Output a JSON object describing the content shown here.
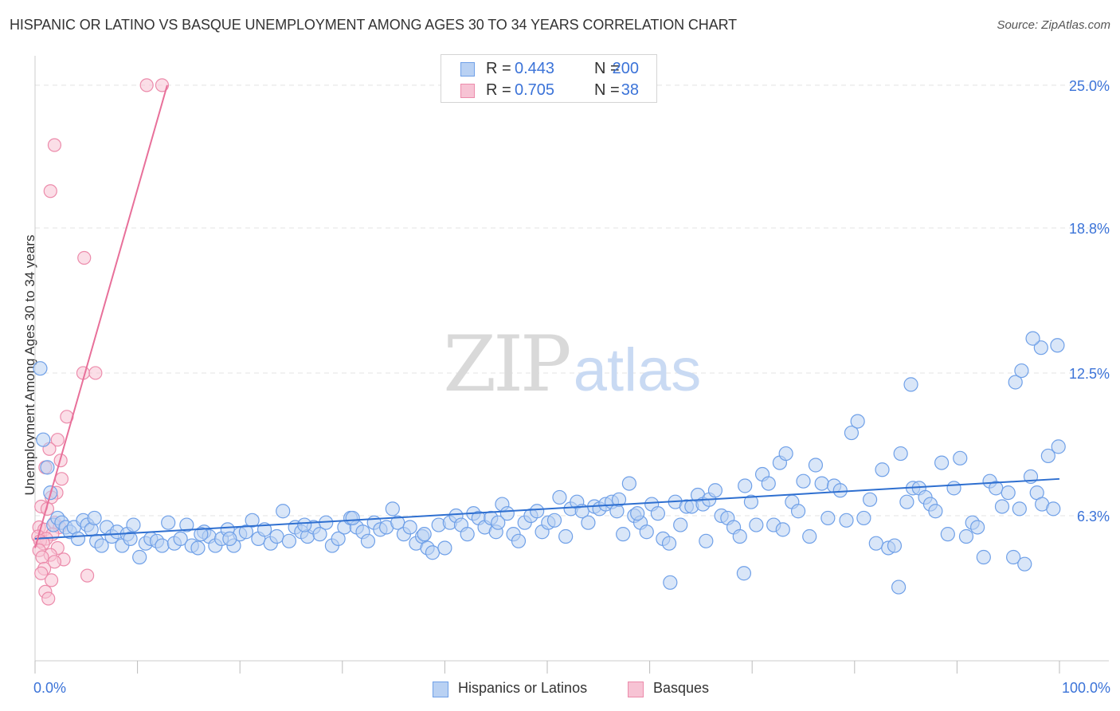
{
  "title": "HISPANIC OR LATINO VS BASQUE UNEMPLOYMENT AMONG AGES 30 TO 34 YEARS CORRELATION CHART",
  "source": "Source: ZipAtlas.com",
  "watermark": {
    "zip": "ZIP",
    "atlas": "atlas"
  },
  "legend": {
    "rows": [
      {
        "r_label": "R =",
        "r_value": "0.443",
        "n_label": "N =",
        "n_value": "200",
        "color": "#6fa0e8"
      },
      {
        "r_label": "R =",
        "r_value": "0.705",
        "n_label": "N =",
        "n_value": "38",
        "color": "#ec8bab"
      }
    ]
  },
  "bottom_legend": [
    {
      "label": "Hispanics or Latinos",
      "color": "#6fa0e8"
    },
    {
      "label": "Basques",
      "color": "#ec8bab"
    }
  ],
  "colors": {
    "blue_fill": "#b9d1f3",
    "blue_stroke": "#6fa0e8",
    "blue_line": "#2e6fd0",
    "pink_fill": "#f7c3d4",
    "pink_stroke": "#ec8bab",
    "pink_line": "#e8709a",
    "axis_text": "#3b73d8",
    "grid": "#e3e3e3"
  },
  "chart_data": {
    "type": "scatter",
    "title": "HISPANIC OR LATINO VS BASQUE UNEMPLOYMENT AMONG AGES 30 TO 34 YEARS CORRELATION CHART",
    "xlabel": "",
    "ylabel": "Unemployment Among Ages 30 to 34 years",
    "xlim": [
      0,
      100
    ],
    "ylim": [
      0,
      26.0
    ],
    "x_tick_labels": [
      "0.0%",
      "100.0%"
    ],
    "y_ticks": [
      6.3,
      12.5,
      18.8,
      25.0
    ],
    "y_tick_labels": [
      "6.3%",
      "12.5%",
      "18.8%",
      "25.0%"
    ],
    "series": [
      {
        "name": "Hispanics or Latinos",
        "r": 0.443,
        "n": 200,
        "trend": {
          "x": [
            0,
            100
          ],
          "y": [
            5.3,
            7.9
          ]
        },
        "points": [
          [
            0.5,
            12.7
          ],
          [
            0.8,
            9.6
          ],
          [
            1.2,
            8.4
          ],
          [
            1.5,
            7.3
          ],
          [
            1.8,
            5.9
          ],
          [
            2.2,
            6.2
          ],
          [
            2.6,
            6.0
          ],
          [
            3.0,
            5.8
          ],
          [
            3.4,
            5.6
          ],
          [
            3.8,
            5.8
          ],
          [
            4.2,
            5.3
          ],
          [
            4.7,
            6.1
          ],
          [
            5.1,
            5.9
          ],
          [
            5.5,
            5.7
          ],
          [
            6.0,
            5.2
          ],
          [
            6.5,
            5.0
          ],
          [
            7.0,
            5.8
          ],
          [
            7.5,
            5.4
          ],
          [
            8.0,
            5.6
          ],
          [
            8.5,
            5.0
          ],
          [
            9.0,
            5.5
          ],
          [
            9.6,
            5.9
          ],
          [
            10.2,
            4.5
          ],
          [
            10.8,
            5.1
          ],
          [
            11.3,
            5.3
          ],
          [
            11.9,
            5.2
          ],
          [
            12.4,
            5.0
          ],
          [
            13.0,
            6.0
          ],
          [
            13.6,
            5.1
          ],
          [
            14.2,
            5.3
          ],
          [
            14.8,
            5.9
          ],
          [
            15.3,
            5.0
          ],
          [
            15.9,
            4.9
          ],
          [
            16.5,
            5.6
          ],
          [
            17.0,
            5.4
          ],
          [
            17.6,
            5.0
          ],
          [
            18.2,
            5.3
          ],
          [
            18.8,
            5.7
          ],
          [
            19.4,
            5.0
          ],
          [
            20.0,
            5.5
          ],
          [
            20.6,
            5.6
          ],
          [
            21.2,
            6.1
          ],
          [
            21.8,
            5.3
          ],
          [
            22.4,
            5.7
          ],
          [
            23.0,
            5.1
          ],
          [
            23.6,
            5.4
          ],
          [
            24.2,
            6.5
          ],
          [
            24.8,
            5.2
          ],
          [
            25.4,
            5.8
          ],
          [
            26.0,
            5.6
          ],
          [
            26.6,
            5.4
          ],
          [
            27.2,
            5.8
          ],
          [
            27.8,
            5.5
          ],
          [
            28.4,
            6.0
          ],
          [
            29.0,
            5.0
          ],
          [
            29.6,
            5.3
          ],
          [
            30.2,
            5.8
          ],
          [
            30.8,
            6.2
          ],
          [
            31.4,
            5.8
          ],
          [
            32.0,
            5.6
          ],
          [
            32.5,
            5.2
          ],
          [
            33.1,
            6.0
          ],
          [
            33.7,
            5.7
          ],
          [
            34.3,
            5.8
          ],
          [
            34.9,
            6.6
          ],
          [
            35.4,
            6.0
          ],
          [
            36.0,
            5.5
          ],
          [
            36.6,
            5.8
          ],
          [
            37.2,
            5.1
          ],
          [
            37.8,
            5.4
          ],
          [
            38.3,
            4.9
          ],
          [
            38.8,
            4.7
          ],
          [
            39.4,
            5.9
          ],
          [
            40.0,
            4.9
          ],
          [
            40.5,
            6.0
          ],
          [
            41.1,
            6.3
          ],
          [
            41.6,
            5.9
          ],
          [
            42.2,
            5.5
          ],
          [
            42.8,
            6.4
          ],
          [
            43.3,
            6.2
          ],
          [
            43.9,
            5.8
          ],
          [
            44.5,
            6.2
          ],
          [
            45.0,
            5.6
          ],
          [
            45.6,
            6.8
          ],
          [
            46.1,
            6.4
          ],
          [
            46.7,
            5.5
          ],
          [
            47.2,
            5.2
          ],
          [
            47.8,
            6.0
          ],
          [
            48.4,
            6.3
          ],
          [
            49.0,
            6.5
          ],
          [
            49.5,
            5.6
          ],
          [
            50.1,
            6.0
          ],
          [
            50.7,
            6.1
          ],
          [
            51.2,
            7.1
          ],
          [
            51.8,
            5.4
          ],
          [
            52.3,
            6.6
          ],
          [
            52.9,
            6.9
          ],
          [
            53.4,
            6.5
          ],
          [
            54.0,
            6.0
          ],
          [
            54.6,
            6.7
          ],
          [
            55.1,
            6.6
          ],
          [
            55.7,
            6.8
          ],
          [
            56.3,
            6.9
          ],
          [
            56.8,
            6.5
          ],
          [
            57.4,
            5.5
          ],
          [
            58.0,
            7.7
          ],
          [
            58.5,
            6.3
          ],
          [
            59.1,
            6.0
          ],
          [
            59.7,
            5.6
          ],
          [
            60.2,
            6.8
          ],
          [
            60.8,
            6.4
          ],
          [
            61.3,
            5.3
          ],
          [
            61.9,
            5.1
          ],
          [
            62.5,
            6.9
          ],
          [
            63.0,
            5.9
          ],
          [
            63.6,
            6.7
          ],
          [
            64.1,
            6.7
          ],
          [
            64.7,
            7.2
          ],
          [
            65.2,
            6.8
          ],
          [
            65.8,
            7.0
          ],
          [
            66.4,
            7.4
          ],
          [
            67.0,
            6.3
          ],
          [
            67.6,
            6.2
          ],
          [
            68.2,
            5.8
          ],
          [
            68.8,
            5.4
          ],
          [
            69.3,
            7.6
          ],
          [
            69.9,
            6.9
          ],
          [
            70.4,
            5.9
          ],
          [
            71.0,
            8.1
          ],
          [
            71.6,
            7.7
          ],
          [
            72.1,
            5.9
          ],
          [
            72.7,
            8.6
          ],
          [
            73.3,
            9.0
          ],
          [
            73.9,
            6.9
          ],
          [
            74.5,
            6.5
          ],
          [
            75.0,
            7.8
          ],
          [
            75.6,
            5.4
          ],
          [
            76.2,
            8.5
          ],
          [
            76.8,
            7.7
          ],
          [
            77.4,
            6.2
          ],
          [
            78.0,
            7.6
          ],
          [
            78.6,
            7.4
          ],
          [
            79.2,
            6.1
          ],
          [
            79.7,
            9.9
          ],
          [
            80.3,
            10.4
          ],
          [
            80.9,
            6.2
          ],
          [
            81.5,
            7.0
          ],
          [
            82.1,
            5.1
          ],
          [
            82.7,
            8.3
          ],
          [
            83.3,
            4.9
          ],
          [
            83.9,
            5.0
          ],
          [
            84.5,
            9.0
          ],
          [
            85.1,
            6.9
          ],
          [
            85.7,
            7.5
          ],
          [
            86.3,
            7.5
          ],
          [
            86.9,
            7.1
          ],
          [
            87.4,
            6.8
          ],
          [
            87.9,
            6.5
          ],
          [
            88.5,
            8.6
          ],
          [
            89.1,
            5.5
          ],
          [
            89.7,
            7.5
          ],
          [
            90.3,
            8.8
          ],
          [
            90.9,
            5.4
          ],
          [
            91.5,
            6.0
          ],
          [
            92.0,
            5.8
          ],
          [
            92.6,
            4.5
          ],
          [
            93.2,
            7.8
          ],
          [
            93.8,
            7.5
          ],
          [
            94.4,
            6.7
          ],
          [
            95.0,
            7.3
          ],
          [
            95.5,
            4.5
          ],
          [
            96.1,
            6.6
          ],
          [
            96.6,
            4.2
          ],
          [
            97.2,
            8.0
          ],
          [
            97.8,
            7.3
          ],
          [
            98.3,
            6.8
          ],
          [
            98.9,
            8.9
          ],
          [
            99.4,
            6.6
          ],
          [
            99.9,
            9.3
          ],
          [
            95.7,
            12.1
          ],
          [
            99.8,
            13.7
          ],
          [
            98.2,
            13.6
          ],
          [
            97.4,
            14.0
          ],
          [
            96.3,
            12.6
          ],
          [
            85.5,
            12.0
          ],
          [
            62.0,
            3.4
          ],
          [
            69.2,
            3.8
          ],
          [
            84.3,
            3.2
          ],
          [
            65.5,
            5.2
          ],
          [
            73.0,
            5.7
          ],
          [
            58.8,
            6.4
          ],
          [
            57.0,
            7.0
          ],
          [
            45.2,
            6.0
          ],
          [
            38.0,
            5.5
          ],
          [
            31.0,
            6.2
          ],
          [
            26.3,
            5.9
          ],
          [
            19.0,
            5.3
          ],
          [
            16.2,
            5.5
          ],
          [
            9.3,
            5.3
          ],
          [
            5.8,
            6.2
          ]
        ]
      },
      {
        "name": "Basques",
        "r": 0.705,
        "n": 38,
        "trend": {
          "x": [
            0,
            12.9
          ],
          "y": [
            4.9,
            25.0
          ]
        },
        "points": [
          [
            10.9,
            25.0
          ],
          [
            12.4,
            25.0
          ],
          [
            1.9,
            22.4
          ],
          [
            1.5,
            20.4
          ],
          [
            4.8,
            17.5
          ],
          [
            4.7,
            12.5
          ],
          [
            5.9,
            12.5
          ],
          [
            3.1,
            10.6
          ],
          [
            2.2,
            9.6
          ],
          [
            1.4,
            9.2
          ],
          [
            2.5,
            8.7
          ],
          [
            1.0,
            8.4
          ],
          [
            2.6,
            7.9
          ],
          [
            2.1,
            7.3
          ],
          [
            1.6,
            7.1
          ],
          [
            0.6,
            6.7
          ],
          [
            1.2,
            6.6
          ],
          [
            1.9,
            6.0
          ],
          [
            0.4,
            5.8
          ],
          [
            2.4,
            5.8
          ],
          [
            0.9,
            5.7
          ],
          [
            1.7,
            5.5
          ],
          [
            0.3,
            5.4
          ],
          [
            1.1,
            5.3
          ],
          [
            0.5,
            5.2
          ],
          [
            0.8,
            5.1
          ],
          [
            2.2,
            4.9
          ],
          [
            0.4,
            4.8
          ],
          [
            1.5,
            4.6
          ],
          [
            0.7,
            4.5
          ],
          [
            2.8,
            4.4
          ],
          [
            1.9,
            4.3
          ],
          [
            0.9,
            4.0
          ],
          [
            0.6,
            3.8
          ],
          [
            5.1,
            3.7
          ],
          [
            1.6,
            3.5
          ],
          [
            1.0,
            3.0
          ],
          [
            1.3,
            2.7
          ]
        ]
      }
    ]
  }
}
